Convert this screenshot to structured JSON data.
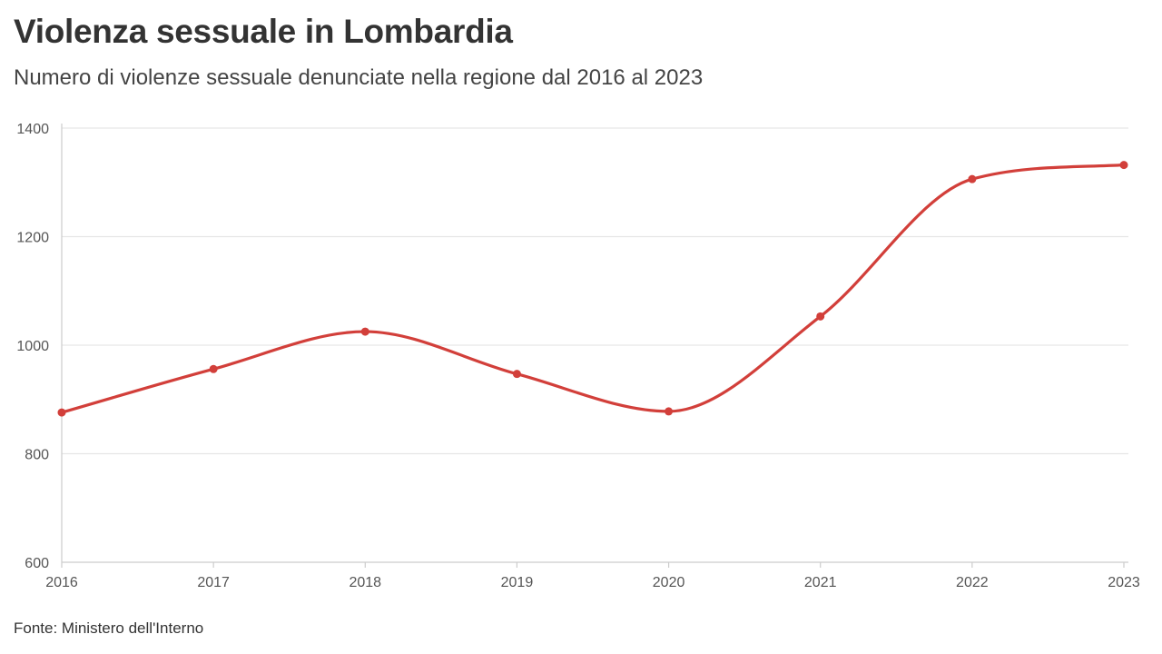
{
  "title": "Violenza sessuale in Lombardia",
  "subtitle": "Numero di violenze sessuale denunciate nella regione dal 2016 al 2023",
  "source": "Fonte: Ministero dell'Interno",
  "colors": {
    "line": "#d23f3a",
    "grid": "#e6e6e6",
    "axis": "#cccccc"
  },
  "chart_data": {
    "type": "line",
    "title": "Violenza sessuale in Lombardia",
    "subtitle": "Numero di violenze sessuale denunciate nella regione dal 2016 al 2023",
    "xlabel": "",
    "ylabel": "",
    "x": [
      2016,
      2017,
      2018,
      2019,
      2020,
      2021,
      2022,
      2023
    ],
    "series": [
      {
        "values": [
          876,
          956,
          1025,
          947,
          878,
          1053,
          1306,
          1332
        ]
      }
    ],
    "ylim": [
      600,
      1400
    ],
    "yticks": [
      600,
      800,
      1000,
      1200,
      1400
    ],
    "xticks": [
      "2016",
      "2017",
      "2018",
      "2019",
      "2020",
      "2021",
      "2022",
      "2023"
    ],
    "grid": true,
    "legend": "none"
  }
}
